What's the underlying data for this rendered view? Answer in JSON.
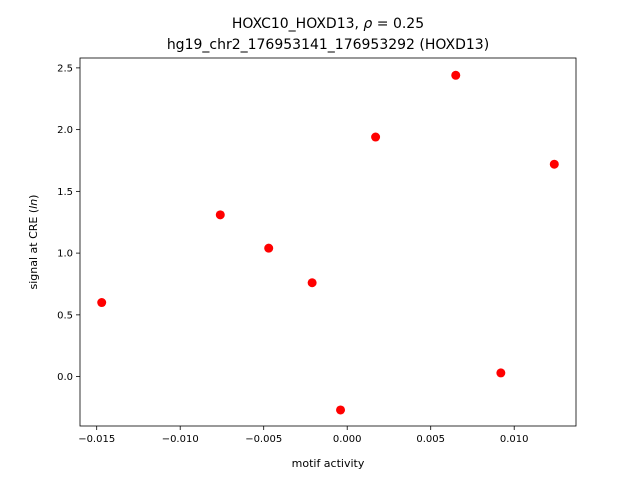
{
  "chart_data": {
    "type": "scatter",
    "title_line1_prefix": "HOXC10_HOXD13, ",
    "title_line1_rho": "ρ",
    "title_line1_suffix": " = 0.25",
    "title_line2": "hg19_chr2_176953141_176953292 (HOXD13)",
    "xlabel": "motif activity",
    "ylabel_prefix": "signal at CRE (",
    "ylabel_italic": "ln",
    "ylabel_suffix": ")",
    "xlim": [
      -0.016,
      0.0137
    ],
    "ylim": [
      -0.4,
      2.58
    ],
    "xticks": [
      -0.015,
      -0.01,
      -0.005,
      0.0,
      0.005,
      0.01
    ],
    "xtick_labels": [
      "−0.015",
      "−0.010",
      "−0.005",
      "0.000",
      "0.005",
      "0.010"
    ],
    "yticks": [
      0.0,
      0.5,
      1.0,
      1.5,
      2.0,
      2.5
    ],
    "ytick_labels": [
      "0.0",
      "0.5",
      "1.0",
      "1.5",
      "2.0",
      "2.5"
    ],
    "marker_color": "#ff0000",
    "grid": false,
    "points": [
      {
        "x": -0.0147,
        "y": 0.6
      },
      {
        "x": -0.0076,
        "y": 1.31
      },
      {
        "x": -0.0047,
        "y": 1.04
      },
      {
        "x": -0.0021,
        "y": 0.76
      },
      {
        "x": -0.0004,
        "y": -0.27
      },
      {
        "x": 0.0017,
        "y": 1.94
      },
      {
        "x": 0.0065,
        "y": 2.44
      },
      {
        "x": 0.0092,
        "y": 0.03
      },
      {
        "x": 0.0124,
        "y": 1.72
      }
    ]
  }
}
